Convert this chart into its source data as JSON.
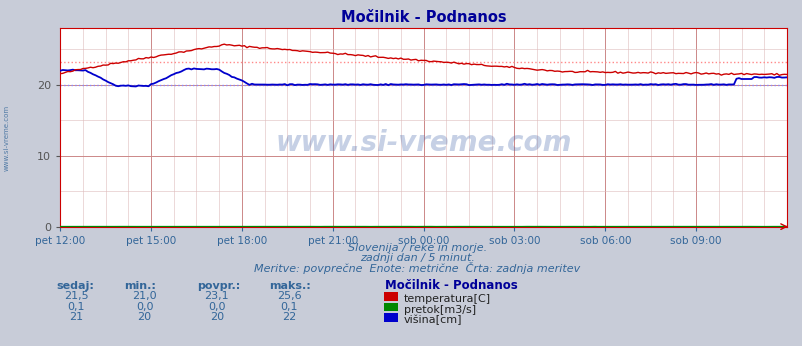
{
  "title": "Močilnik - Podnanos",
  "fig_bg_color": "#c8ccd8",
  "plot_bg_color": "#ffffff",
  "grid_color": "#ddaaaa",
  "grid_minor_color": "#eedddd",
  "xlim": [
    0,
    288
  ],
  "ylim": [
    0,
    28
  ],
  "yticks": [
    0,
    10,
    20
  ],
  "xtick_labels": [
    "pet 12:00",
    "pet 15:00",
    "pet 18:00",
    "pet 21:00",
    "sob 00:00",
    "sob 03:00",
    "sob 06:00",
    "sob 09:00"
  ],
  "xtick_positions": [
    0,
    36,
    72,
    108,
    144,
    180,
    216,
    252
  ],
  "temp_color": "#cc0000",
  "flow_color": "#008800",
  "height_color": "#0000cc",
  "avg_temp_color": "#ff8888",
  "avg_height_color": "#8888ff",
  "watermark_text": "www.si-vreme.com",
  "watermark_color": "#4466aa",
  "watermark_alpha": 0.3,
  "sub_text1": "Slovenija / reke in morje.",
  "sub_text2": "zadnji dan / 5 minut.",
  "sub_text3": "Meritve: povprečne  Enote: metrične  Črta: zadnja meritev",
  "sub_color": "#336699",
  "legend_title": "Močilnik - Podnanos",
  "legend_items": [
    "temperatura[C]",
    "pretok[m3/s]",
    "višina[cm]"
  ],
  "legend_colors": [
    "#cc0000",
    "#008800",
    "#0000cc"
  ],
  "table_headers": [
    "sedaj:",
    "min.:",
    "povpr.:",
    "maks.:"
  ],
  "table_data": [
    [
      "21,5",
      "21,0",
      "23,1",
      "25,6"
    ],
    [
      "0,1",
      "0,0",
      "0,0",
      "0,1"
    ],
    [
      "21",
      "20",
      "20",
      "22"
    ]
  ],
  "left_margin_text": "www.si-vreme.com",
  "title_color": "#000099",
  "axis_color": "#cc0000",
  "tick_color": "#336699",
  "avg_temp": 23.1,
  "avg_height": 20.0
}
